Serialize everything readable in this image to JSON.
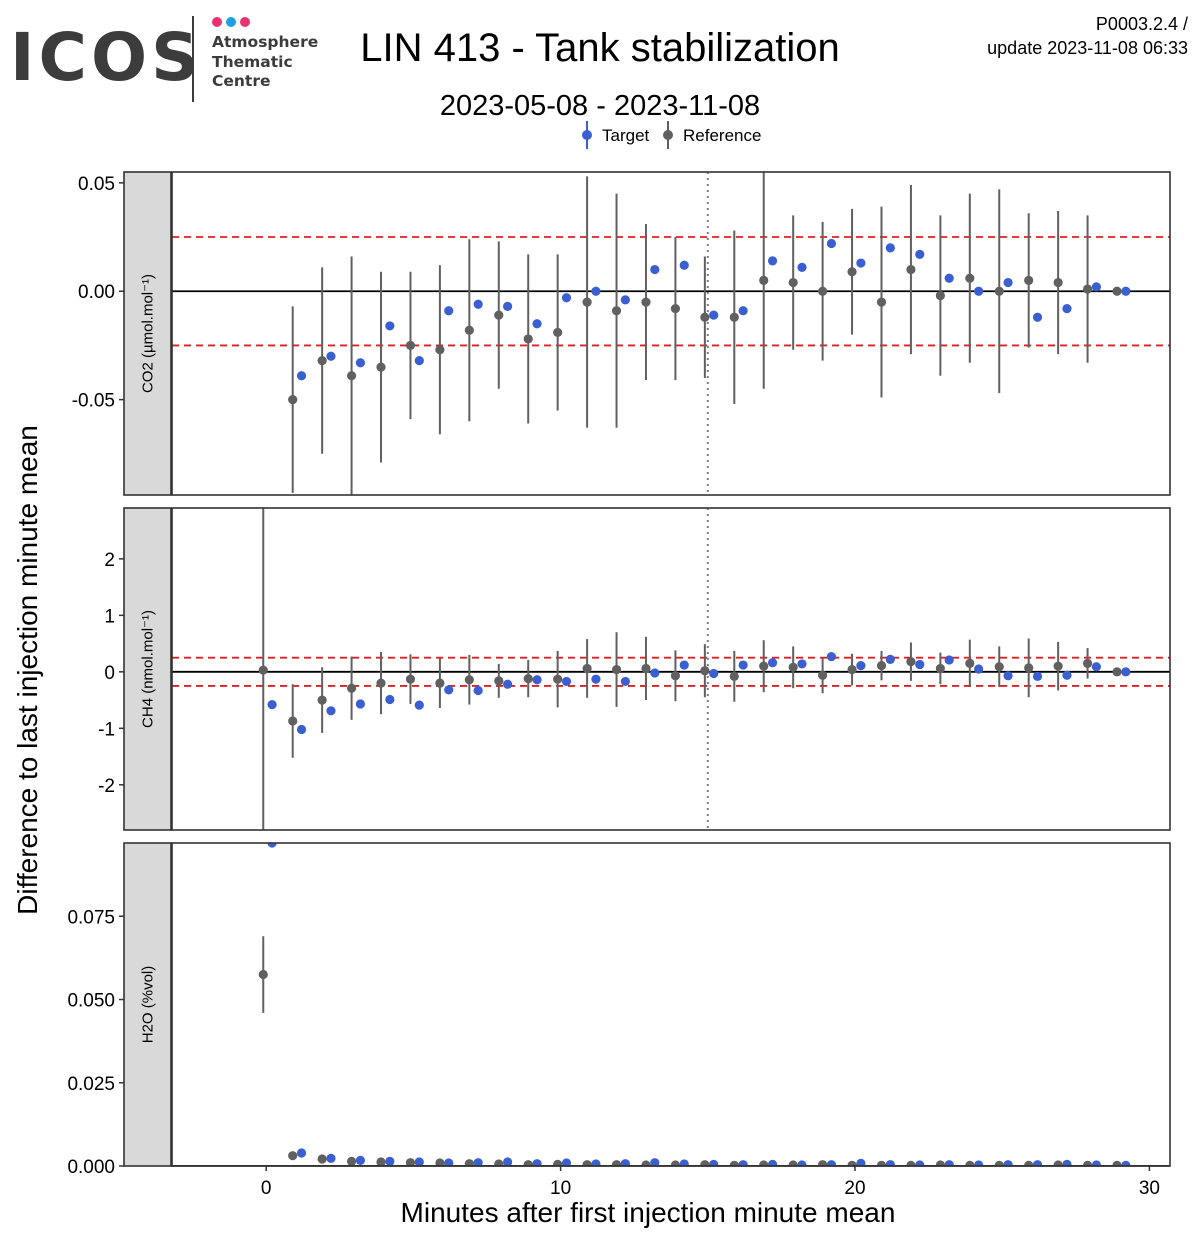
{
  "header": {
    "logo_text": "ICOS",
    "logo_subtitle": [
      "Atmosphere",
      "Thematic",
      "Centre"
    ],
    "logo_dot_colors": [
      "#e8336f",
      "#1da1e3",
      "#e8336f"
    ],
    "title": "LIN 413 - Tank stabilization",
    "subtitle": "2023-05-08 - 2023-11-08",
    "version": "P0003.2.4 /",
    "update": "update  2023-11-08 06:33"
  },
  "chart_data": {
    "type": "scatter",
    "legend": {
      "placement": "top-center",
      "entries": [
        "Target",
        "Reference"
      ]
    },
    "colors": {
      "Target": "#3a5fd1",
      "Reference": "#606060",
      "threshold": "#e02020",
      "vline": "#7a7aa0"
    },
    "xlabel": "Minutes after first injection minute mean",
    "ylabel": "Difference to last injection minute mean",
    "xlim": [
      -3.2,
      30.7
    ],
    "xticks": [
      0,
      10,
      20,
      30
    ],
    "vline_x": 15,
    "panels": [
      {
        "strip": "CO2 (µmol.mol⁻¹)",
        "ylim": [
          -0.094,
          0.055
        ],
        "yticks": [
          -0.05,
          0.0,
          0.05
        ],
        "ytick_labels": [
          "-0.05",
          "0.00",
          "0.05"
        ],
        "threshold": 0.025,
        "zero_line": true,
        "series": [
          {
            "name": "Target",
            "x": [
              1.2,
              2.2,
              3.2,
              4.2,
              5.2,
              6.2,
              7.2,
              8.2,
              9.2,
              10.2,
              11.2,
              12.2,
              13.2,
              14.2,
              15.2,
              16.2,
              17.2,
              18.2,
              19.2,
              20.2,
              21.2,
              22.2,
              23.2,
              24.2,
              25.2,
              26.2,
              27.2,
              28.2,
              29.2
            ],
            "y": [
              -0.039,
              -0.03,
              -0.033,
              -0.016,
              -0.032,
              -0.009,
              -0.006,
              -0.007,
              -0.015,
              -0.003,
              0.0,
              -0.004,
              0.01,
              0.012,
              -0.011,
              -0.009,
              0.014,
              0.011,
              0.022,
              0.013,
              0.02,
              0.017,
              0.006,
              0.0,
              0.004,
              -0.012,
              -0.008,
              0.002,
              0.0
            ]
          },
          {
            "name": "Reference",
            "x": [
              0.9,
              1.9,
              2.9,
              3.9,
              4.9,
              5.9,
              6.9,
              7.9,
              8.9,
              9.9,
              10.9,
              11.9,
              12.9,
              13.9,
              14.9,
              15.9,
              16.9,
              17.9,
              18.9,
              19.9,
              20.9,
              21.9,
              22.9,
              23.9,
              24.9,
              25.9,
              26.9,
              27.9,
              28.9
            ],
            "y": [
              -0.05,
              -0.032,
              -0.039,
              -0.035,
              -0.025,
              -0.027,
              -0.018,
              -0.011,
              -0.022,
              -0.019,
              -0.005,
              -0.009,
              -0.005,
              -0.008,
              -0.012,
              -0.012,
              0.005,
              0.004,
              0.0,
              0.009,
              -0.005,
              0.01,
              -0.002,
              0.006,
              0.0,
              0.005,
              0.004,
              0.001,
              0.0
            ],
            "err": [
              0.043,
              0.043,
              0.055,
              0.044,
              0.034,
              0.039,
              0.042,
              0.034,
              0.039,
              0.036,
              0.058,
              0.054,
              0.036,
              0.033,
              0.028,
              0.04,
              0.05,
              0.031,
              0.032,
              0.029,
              0.044,
              0.039,
              0.037,
              0.039,
              0.047,
              0.031,
              0.033,
              0.034,
              0.0
            ]
          }
        ]
      },
      {
        "strip": "CH4 (nmol.mol⁻¹)",
        "ylim": [
          -2.8,
          2.9
        ],
        "yticks": [
          -2,
          -1,
          0,
          1,
          2
        ],
        "ytick_labels": [
          "-2",
          "-1",
          "0",
          "1",
          "2"
        ],
        "threshold": 0.25,
        "zero_line": true,
        "series": [
          {
            "name": "Target",
            "x": [
              0.2,
              1.2,
              2.2,
              3.2,
              4.2,
              5.2,
              6.2,
              7.2,
              8.2,
              9.2,
              10.2,
              11.2,
              12.2,
              13.2,
              14.2,
              15.2,
              16.2,
              17.2,
              18.2,
              19.2,
              20.2,
              21.2,
              22.2,
              23.2,
              24.2,
              25.2,
              26.2,
              27.2,
              28.2,
              29.2
            ],
            "y": [
              -0.58,
              -1.02,
              -0.69,
              -0.57,
              -0.49,
              -0.59,
              -0.32,
              -0.33,
              -0.22,
              -0.14,
              -0.17,
              -0.13,
              -0.17,
              -0.02,
              0.12,
              -0.03,
              0.12,
              0.16,
              0.14,
              0.27,
              0.11,
              0.22,
              0.13,
              0.21,
              0.05,
              -0.07,
              -0.08,
              -0.06,
              0.09,
              0.0
            ]
          },
          {
            "name": "Reference",
            "x": [
              -0.1,
              0.9,
              1.9,
              2.9,
              3.9,
              4.9,
              5.9,
              6.9,
              7.9,
              8.9,
              9.9,
              10.9,
              11.9,
              12.9,
              13.9,
              14.9,
              15.9,
              16.9,
              17.9,
              18.9,
              19.9,
              20.9,
              21.9,
              22.9,
              23.9,
              24.9,
              25.9,
              26.9,
              27.9,
              28.9
            ],
            "y": [
              0.03,
              -0.87,
              -0.5,
              -0.29,
              -0.2,
              -0.13,
              -0.2,
              -0.14,
              -0.16,
              -0.12,
              -0.13,
              0.06,
              0.04,
              0.06,
              -0.07,
              0.02,
              -0.08,
              0.1,
              0.08,
              -0.06,
              0.04,
              0.11,
              0.18,
              0.06,
              0.15,
              0.09,
              0.07,
              0.1,
              0.15,
              0.0
            ],
            "err": [
              2.9,
              0.65,
              0.58,
              0.56,
              0.55,
              0.44,
              0.44,
              0.44,
              0.3,
              0.33,
              0.5,
              0.52,
              0.66,
              0.56,
              0.45,
              0.47,
              0.45,
              0.46,
              0.37,
              0.32,
              0.28,
              0.26,
              0.34,
              0.28,
              0.42,
              0.36,
              0.52,
              0.43,
              0.27,
              0.0
            ]
          }
        ]
      },
      {
        "strip": "H2O (%vol)",
        "ylim": [
          0.0,
          0.097
        ],
        "yticks": [
          0.0,
          0.025,
          0.05,
          0.075
        ],
        "ytick_labels": [
          "0.000",
          "0.025",
          "0.050",
          "0.075"
        ],
        "threshold": null,
        "zero_line": true,
        "series": [
          {
            "name": "Target",
            "x": [
              0.2,
              1.2,
              2.2,
              3.2,
              4.2,
              5.2,
              6.2,
              7.2,
              8.2,
              9.2,
              10.2,
              11.2,
              12.2,
              13.2,
              14.2,
              15.2,
              16.2,
              17.2,
              18.2,
              19.2,
              20.2,
              21.2,
              22.2,
              23.2,
              24.2,
              25.2,
              26.2,
              27.2,
              28.2,
              29.2
            ],
            "y": [
              0.097,
              0.0039,
              0.0023,
              0.0017,
              0.0014,
              0.0012,
              0.0009,
              0.001,
              0.0012,
              0.0007,
              0.0009,
              0.0006,
              0.0007,
              0.001,
              0.0006,
              0.0005,
              0.0004,
              0.0005,
              0.0003,
              0.0004,
              0.0008,
              0.0004,
              0.0003,
              0.0004,
              0.0003,
              0.0004,
              0.0004,
              0.0005,
              0.0003,
              0.0002
            ]
          },
          {
            "name": "Reference",
            "x": [
              -0.1,
              0.9,
              1.9,
              2.9,
              3.9,
              4.9,
              5.9,
              6.9,
              7.9,
              8.9,
              9.9,
              10.9,
              11.9,
              12.9,
              13.9,
              14.9,
              15.9,
              16.9,
              17.9,
              18.9,
              19.9,
              20.9,
              21.9,
              22.9,
              23.9,
              24.9,
              25.9,
              26.9,
              27.9,
              28.9
            ],
            "y": [
              0.0575,
              0.0031,
              0.0021,
              0.0014,
              0.0012,
              0.001,
              0.0009,
              0.0007,
              0.0006,
              0.0004,
              0.0005,
              0.0004,
              0.0004,
              0.0003,
              0.0003,
              0.0004,
              0.0002,
              0.0003,
              0.0003,
              0.0004,
              0.0002,
              0.0002,
              0.0002,
              0.0003,
              0.0002,
              0.0002,
              0.0002,
              0.0003,
              0.0002,
              0.0002
            ],
            "err": [
              0.0115,
              0.0007,
              0.0005,
              0.0004,
              0.0003,
              0.0003,
              0.0002,
              0.0002,
              0.0002,
              0.0001,
              0.0001,
              0.0001,
              0.0001,
              0.0001,
              0.0001,
              0.0001,
              0.0001,
              0.0001,
              0.0001,
              0.0001,
              0.0001,
              0.0001,
              0.0001,
              0.0001,
              0.0001,
              0.0001,
              0.0001,
              0.0001,
              0.0001,
              0.0001
            ]
          }
        ]
      }
    ]
  }
}
